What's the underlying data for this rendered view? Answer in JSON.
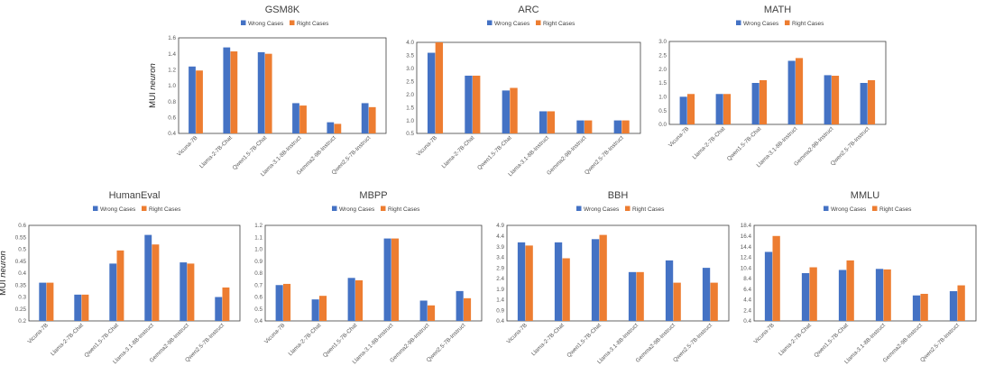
{
  "ylabel": {
    "prefix": "MUI",
    "italic": "neuron"
  },
  "colors": {
    "wrong": "#4472C4",
    "right": "#ED7D31",
    "axis": "#404040"
  },
  "chart_data": [
    {
      "type": "bar",
      "title": "GSM8K",
      "categories": [
        "Vicuna-7B",
        "Llama-2-7B-Chat",
        "Qwen1.5-7B-Chat",
        "Llama-3.1-8B-Instruct",
        "Gemma2-9B-Instruct",
        "Qwen2.5-7B-Instruct"
      ],
      "series": [
        {
          "name": "Wrong Cases",
          "values": [
            1.24,
            1.48,
            1.42,
            0.78,
            0.54,
            0.78
          ]
        },
        {
          "name": "Right Cases",
          "values": [
            1.19,
            1.43,
            1.4,
            0.75,
            0.52,
            0.73
          ]
        }
      ],
      "yticks": [
        "0.4",
        "0.6",
        "0.8",
        "1.0",
        "1.2",
        "1.4",
        "1.6"
      ],
      "ylim": [
        0.4,
        1.6
      ],
      "legend": "top"
    },
    {
      "type": "bar",
      "title": "ARC",
      "categories": [
        "Vicuna-7B",
        "Llama-2-7B-Chat",
        "Qwen1.5-7B-Chat",
        "Llama-3.1-8B-Instruct",
        "Gemma2-9B-Instruct",
        "Qwen2.5-7B-Instruct"
      ],
      "series": [
        {
          "name": "Wrong Cases",
          "values": [
            3.6,
            2.72,
            2.15,
            1.35,
            1.0,
            1.0
          ]
        },
        {
          "name": "Right Cases",
          "values": [
            4.0,
            2.72,
            2.25,
            1.35,
            1.0,
            1.0
          ]
        }
      ],
      "yticks": [
        "0.5",
        "1.0",
        "1.5",
        "2.0",
        "2.5",
        "3.0",
        "3.5",
        "4.0"
      ],
      "ylim": [
        0.5,
        4.0
      ],
      "legend": "top"
    },
    {
      "type": "bar",
      "title": "MATH",
      "categories": [
        "Vicuna-7B",
        "Llama-2-7B-Chat",
        "Qwen1.5-7B-Chat",
        "Llama-3.1-8B-Instruct",
        "Gemma2-9B-Instruct",
        "Qwen2.5-7B-Instruct"
      ],
      "series": [
        {
          "name": "Wrong Cases",
          "values": [
            1.0,
            1.1,
            1.5,
            2.3,
            1.78,
            1.5
          ]
        },
        {
          "name": "Right Cases",
          "values": [
            1.1,
            1.1,
            1.6,
            2.4,
            1.76,
            1.6
          ]
        }
      ],
      "yticks": [
        "0.0",
        "0.5",
        "1.0",
        "1.5",
        "2.0",
        "2.5",
        "3.0"
      ],
      "ylim": [
        0.0,
        3.0
      ],
      "legend": "top"
    },
    {
      "type": "bar",
      "title": "HumanEval",
      "categories": [
        "Vicuna-7B",
        "Llama-2-7B-Chat",
        "Qwen1.5-7B-Chat",
        "Llama-3.1-8B-Instruct",
        "Gemma2-9B-Instruct",
        "Qwen2.5-7B-Instruct"
      ],
      "series": [
        {
          "name": "Wrong Cases",
          "values": [
            0.36,
            0.31,
            0.44,
            0.56,
            0.445,
            0.3
          ]
        },
        {
          "name": "Right Cases",
          "values": [
            0.36,
            0.31,
            0.495,
            0.52,
            0.44,
            0.34
          ]
        }
      ],
      "yticks": [
        "0.2",
        "0.25",
        "0.3",
        "0.35",
        "0.4",
        "0.45",
        "0.5",
        "0.55",
        "0.6"
      ],
      "ylim": [
        0.2,
        0.6
      ],
      "legend": "top"
    },
    {
      "type": "bar",
      "title": "MBPP",
      "categories": [
        "Vicuna-7B",
        "Llama-2-7B-Chat",
        "Qwen1.5-7B-Chat",
        "Llama-3.1-8B-Instruct",
        "Gemma2-9B-Instruct",
        "Qwen2.5-7B-Instruct"
      ],
      "series": [
        {
          "name": "Wrong Cases",
          "values": [
            0.7,
            0.58,
            0.76,
            1.09,
            0.57,
            0.65
          ]
        },
        {
          "name": "Right Cases",
          "values": [
            0.71,
            0.61,
            0.74,
            1.09,
            0.53,
            0.59
          ]
        }
      ],
      "yticks": [
        "0.4",
        "0.5",
        "0.6",
        "0.7",
        "0.8",
        "0.9",
        "1.0",
        "1.1",
        "1.2"
      ],
      "ylim": [
        0.4,
        1.2
      ],
      "legend": "top"
    },
    {
      "type": "bar",
      "title": "BBH",
      "categories": [
        "Vicuna-7B",
        "Llama-2-7B-Chat",
        "Qwen1.5-7B-Chat",
        "Llama-3.1-8B-Instruct",
        "Gemma2-9B-Instruct",
        "Qwen2.5-7B-Instruct"
      ],
      "series": [
        {
          "name": "Wrong Cases",
          "values": [
            4.1,
            4.1,
            4.25,
            2.7,
            3.25,
            2.9
          ]
        },
        {
          "name": "Right Cases",
          "values": [
            3.95,
            3.35,
            4.45,
            2.7,
            2.2,
            2.2
          ]
        }
      ],
      "yticks": [
        "0.4",
        "0.9",
        "1.4",
        "1.9",
        "2.4",
        "2.9",
        "3.4",
        "3.9",
        "4.4",
        "4.9"
      ],
      "ylim": [
        0.4,
        4.9
      ],
      "legend": "top"
    },
    {
      "type": "bar",
      "title": "MMLU",
      "categories": [
        "Vicuna-7B",
        "Llama-2-7B-Chat",
        "Qwen1.5-7B-Chat",
        "Llama-3.1-8B-Instruct",
        "Gemma2-9B-Instruct",
        "Qwen2.5-7B-Instruct"
      ],
      "series": [
        {
          "name": "Wrong Cases",
          "values": [
            13.4,
            9.4,
            10.0,
            10.2,
            5.2,
            6.0
          ]
        },
        {
          "name": "Right Cases",
          "values": [
            16.4,
            10.5,
            11.8,
            10.1,
            5.5,
            7.1
          ]
        }
      ],
      "yticks": [
        "0.4",
        "2.4",
        "4.4",
        "6.4",
        "8.4",
        "10.4",
        "12.4",
        "14.4",
        "16.4",
        "18.4"
      ],
      "ylim": [
        0.4,
        18.4
      ],
      "legend": "top"
    }
  ]
}
